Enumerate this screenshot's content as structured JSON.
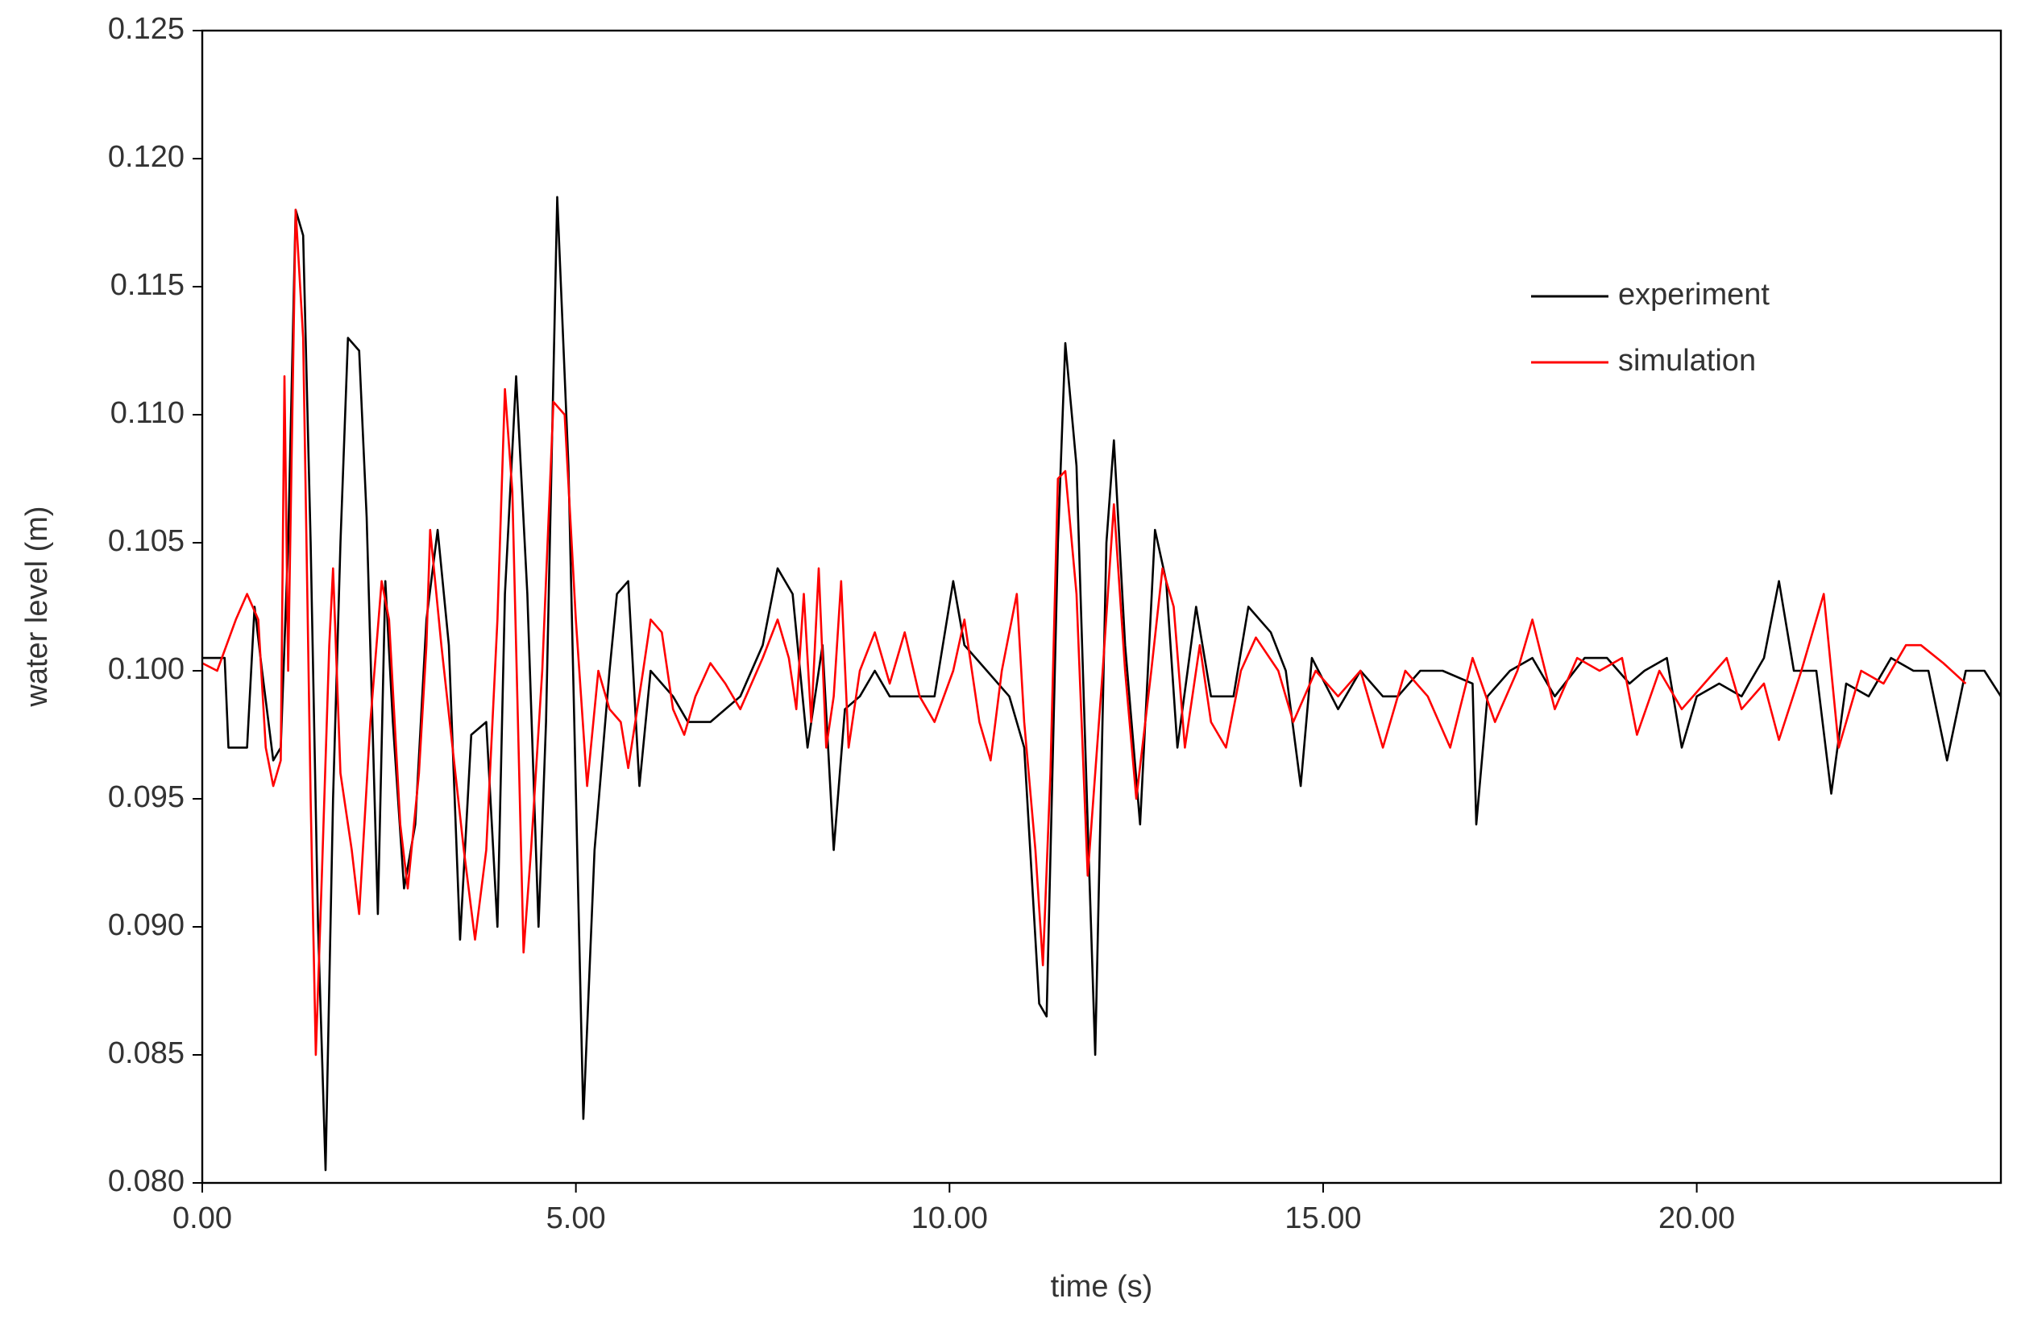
{
  "chart_data": {
    "type": "line",
    "xlabel": "time (s)",
    "ylabel": "water level (m)",
    "xlim": [
      0,
      24.07
    ],
    "ylim": [
      0.08,
      0.125
    ],
    "xticks": [
      {
        "value": 0,
        "label": "0.00"
      },
      {
        "value": 5,
        "label": "5.00"
      },
      {
        "value": 10,
        "label": "10.00"
      },
      {
        "value": 15,
        "label": "15.00"
      },
      {
        "value": 20,
        "label": "20.00"
      }
    ],
    "yticks": [
      {
        "value": 0.08,
        "label": "0.080"
      },
      {
        "value": 0.085,
        "label": "0.085"
      },
      {
        "value": 0.09,
        "label": "0.090"
      },
      {
        "value": 0.095,
        "label": "0.095"
      },
      {
        "value": 0.1,
        "label": "0.100"
      },
      {
        "value": 0.105,
        "label": "0.105"
      },
      {
        "value": 0.11,
        "label": "0.110"
      },
      {
        "value": 0.115,
        "label": "0.115"
      },
      {
        "value": 0.12,
        "label": "0.120"
      },
      {
        "value": 0.125,
        "label": "0.125"
      }
    ],
    "legend": "upper right",
    "series": [
      {
        "name": "experiment",
        "color": "#000000",
        "x": [
          0,
          0.3,
          0.35,
          0.6,
          0.7,
          0.8,
          0.95,
          1.05,
          1.15,
          1.25,
          1.35,
          1.45,
          1.55,
          1.65,
          1.75,
          1.85,
          1.95,
          2.1,
          2.2,
          2.35,
          2.45,
          2.55,
          2.7,
          2.85,
          3.0,
          3.15,
          3.3,
          3.45,
          3.6,
          3.8,
          3.95,
          4.05,
          4.2,
          4.35,
          4.5,
          4.6,
          4.75,
          4.9,
          5.1,
          5.25,
          5.45,
          5.55,
          5.7,
          5.85,
          6.0,
          6.3,
          6.5,
          6.8,
          7.2,
          7.5,
          7.7,
          7.9,
          8.1,
          8.3,
          8.45,
          8.6,
          8.8,
          9.0,
          9.2,
          9.5,
          9.8,
          10.05,
          10.2,
          10.5,
          10.8,
          11.0,
          11.2,
          11.3,
          11.45,
          11.55,
          11.7,
          11.85,
          11.95,
          12.1,
          12.2,
          12.35,
          12.55,
          12.75,
          12.9,
          13.05,
          13.3,
          13.5,
          13.8,
          14.0,
          14.3,
          14.5,
          14.7,
          14.85,
          15.2,
          15.5,
          15.8,
          16.0,
          16.3,
          16.6,
          17.0,
          17.05,
          17.2,
          17.5,
          17.8,
          18.1,
          18.5,
          18.8,
          19.1,
          19.3,
          19.6,
          19.8,
          20.0,
          20.3,
          20.6,
          20.9,
          21.1,
          21.3,
          21.6,
          21.8,
          22.0,
          22.3,
          22.6,
          22.9,
          23.1,
          23.35,
          23.6,
          23.85,
          24.07
        ],
        "values": [
          0.1005,
          0.1005,
          0.097,
          0.097,
          0.1025,
          0.1,
          0.0965,
          0.097,
          0.105,
          0.118,
          0.117,
          0.105,
          0.09,
          0.0805,
          0.095,
          0.105,
          0.113,
          0.1125,
          0.106,
          0.0905,
          0.1035,
          0.098,
          0.0915,
          0.094,
          0.102,
          0.1055,
          0.101,
          0.0895,
          0.0975,
          0.098,
          0.09,
          0.103,
          0.1115,
          0.103,
          0.09,
          0.098,
          0.1185,
          0.108,
          0.0825,
          0.093,
          0.1,
          0.103,
          0.1035,
          0.0955,
          0.1,
          0.099,
          0.098,
          0.098,
          0.099,
          0.101,
          0.104,
          0.103,
          0.097,
          0.101,
          0.093,
          0.0985,
          0.099,
          0.1,
          0.099,
          0.099,
          0.099,
          0.1035,
          0.101,
          0.1,
          0.099,
          0.097,
          0.087,
          0.0865,
          0.105,
          0.1128,
          0.108,
          0.094,
          0.085,
          0.105,
          0.109,
          0.101,
          0.094,
          0.1055,
          0.1035,
          0.097,
          0.1025,
          0.099,
          0.099,
          0.1025,
          0.1015,
          0.1,
          0.0955,
          0.1005,
          0.0985,
          0.1,
          0.099,
          0.099,
          0.1,
          0.1,
          0.0995,
          0.094,
          0.099,
          0.1,
          0.1005,
          0.099,
          0.1005,
          0.1005,
          0.0995,
          0.1,
          0.1005,
          0.097,
          0.099,
          0.0995,
          0.099,
          0.1005,
          0.1035,
          0.1,
          0.1,
          0.0952,
          0.0995,
          0.099,
          0.1005,
          0.1,
          0.1,
          0.0965,
          0.1,
          0.1,
          0.099
        ]
      },
      {
        "name": "simulation",
        "color": "#ff0000",
        "x": [
          0,
          0.2,
          0.45,
          0.6,
          0.75,
          0.85,
          0.95,
          1.05,
          1.1,
          1.15,
          1.25,
          1.35,
          1.45,
          1.52,
          1.6,
          1.7,
          1.75,
          1.85,
          2.0,
          2.1,
          2.25,
          2.4,
          2.5,
          2.65,
          2.75,
          2.9,
          3.0,
          3.05,
          3.2,
          3.35,
          3.5,
          3.65,
          3.8,
          3.95,
          4.05,
          4.15,
          4.3,
          4.4,
          4.55,
          4.7,
          4.85,
          5.0,
          5.15,
          5.3,
          5.45,
          5.6,
          5.7,
          5.9,
          6.0,
          6.15,
          6.3,
          6.45,
          6.6,
          6.8,
          7.0,
          7.2,
          7.5,
          7.7,
          7.85,
          7.95,
          8.05,
          8.15,
          8.25,
          8.35,
          8.45,
          8.55,
          8.65,
          8.8,
          9.0,
          9.2,
          9.4,
          9.6,
          9.8,
          10.05,
          10.2,
          10.4,
          10.55,
          10.7,
          10.9,
          11.0,
          11.15,
          11.25,
          11.35,
          11.45,
          11.55,
          11.7,
          11.85,
          12.05,
          12.2,
          12.35,
          12.5,
          12.7,
          12.85,
          13.0,
          13.15,
          13.35,
          13.5,
          13.7,
          13.9,
          14.1,
          14.4,
          14.6,
          14.9,
          15.2,
          15.5,
          15.8,
          16.1,
          16.4,
          16.7,
          17.0,
          17.3,
          17.6,
          17.8,
          18.1,
          18.4,
          18.7,
          19.0,
          19.2,
          19.5,
          19.8,
          20.1,
          20.4,
          20.6,
          20.9,
          21.1,
          21.4,
          21.7,
          21.9,
          22.2,
          22.5,
          22.8,
          23.0,
          23.3,
          23.6
        ],
        "values": [
          0.1003,
          0.1,
          0.102,
          0.103,
          0.102,
          0.097,
          0.0955,
          0.0965,
          0.1115,
          0.1,
          0.118,
          0.113,
          0.095,
          0.085,
          0.092,
          0.101,
          0.104,
          0.096,
          0.093,
          0.0905,
          0.098,
          0.1035,
          0.102,
          0.094,
          0.0915,
          0.096,
          0.101,
          0.1055,
          0.101,
          0.097,
          0.093,
          0.0895,
          0.093,
          0.102,
          0.111,
          0.107,
          0.089,
          0.093,
          0.1,
          0.1105,
          0.11,
          0.102,
          0.0955,
          0.1,
          0.0985,
          0.098,
          0.0962,
          0.1,
          0.102,
          0.1015,
          0.0985,
          0.0975,
          0.099,
          0.1003,
          0.0995,
          0.0985,
          0.1005,
          0.102,
          0.1005,
          0.0985,
          0.103,
          0.098,
          0.104,
          0.097,
          0.099,
          0.1035,
          0.097,
          0.1,
          0.1015,
          0.0995,
          0.1015,
          0.099,
          0.098,
          0.1,
          0.102,
          0.098,
          0.0965,
          0.1,
          0.103,
          0.098,
          0.093,
          0.0885,
          0.096,
          0.1075,
          0.1078,
          0.103,
          0.092,
          0.1,
          0.1065,
          0.1,
          0.095,
          0.1,
          0.104,
          0.1025,
          0.097,
          0.101,
          0.098,
          0.097,
          0.1,
          0.1013,
          0.1,
          0.098,
          0.1,
          0.099,
          0.1,
          0.097,
          0.1,
          0.099,
          0.097,
          0.1005,
          0.098,
          0.1,
          0.102,
          0.0985,
          0.1005,
          0.1,
          0.1005,
          0.0975,
          0.1,
          0.0985,
          0.0995,
          0.1005,
          0.0985,
          0.0995,
          0.0973,
          0.1,
          0.103,
          0.097,
          0.1,
          0.0995,
          0.101,
          0.101,
          0.1003,
          0.0995
        ]
      }
    ]
  }
}
